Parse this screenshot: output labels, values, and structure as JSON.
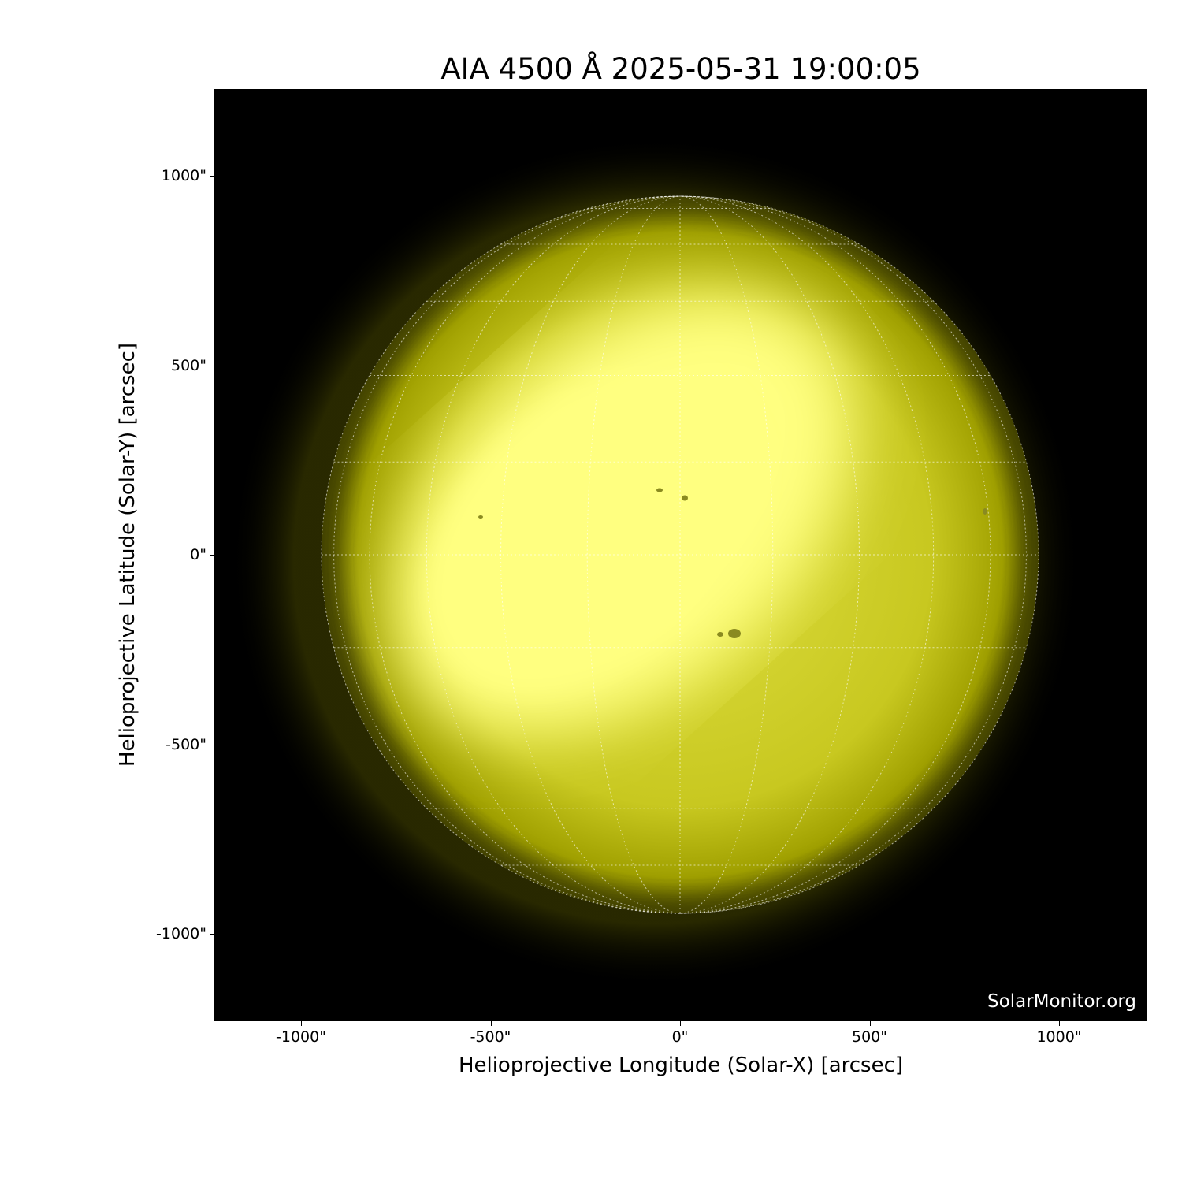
{
  "title": "AIA 4500 Å 2025-05-31 19:00:05",
  "xlabel": "Helioprojective Longitude (Solar-X) [arcsec]",
  "ylabel": "Helioprojective Latitude (Solar-Y) [arcsec]",
  "watermark": "SolarMonitor.org",
  "x_ticks": [
    "-1000\"",
    "-500\"",
    "0\"",
    "500\"",
    "1000\""
  ],
  "y_ticks": [
    "1000\"",
    "500\"",
    "0\"",
    "-500\"",
    "-1000\""
  ],
  "x_tick_values": [
    -1000,
    -500,
    0,
    500,
    1000
  ],
  "y_tick_values": [
    1000,
    500,
    0,
    -500,
    -1000
  ],
  "axis_range_arcsec": {
    "x": [
      -1229,
      1232
    ],
    "y": [
      -1232,
      1227
    ]
  },
  "solar_radius_arcsec": 946,
  "grid_spacing_deg": 15,
  "colors": {
    "background": "#000000",
    "disk_bright": "#ffff80",
    "disk_dim": "#b0b000",
    "limb": "#4a4a00",
    "grid": "#ffffff"
  }
}
